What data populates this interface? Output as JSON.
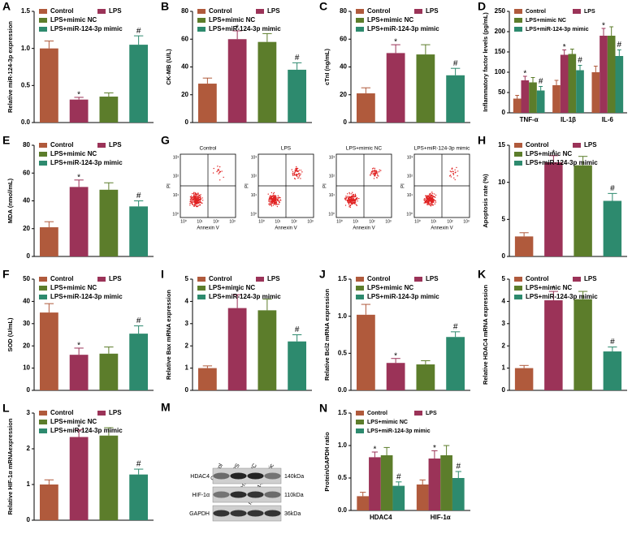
{
  "chart_data": [
    {
      "label": "A",
      "type": "bar",
      "ylabel": "Relative miR-124-3p expression",
      "ylim": [
        0,
        1.5
      ],
      "yticks": [
        {
          "value": 0,
          "label": "0.0"
        },
        0.5,
        {
          "value": 1,
          "label": "1.0"
        },
        1.5
      ],
      "series": [
        {
          "name": "Control",
          "color": "#b05a3c",
          "values": [
            1.0
          ],
          "errors": [
            0.1
          ]
        },
        {
          "name": "LPS",
          "color": "#9b3358",
          "values": [
            0.31
          ],
          "errors": [
            0.03
          ],
          "marks": [
            "*"
          ]
        },
        {
          "name": "LPS+mimic NC",
          "color": "#5c7d2b",
          "values": [
            0.35
          ],
          "errors": [
            0.05
          ]
        },
        {
          "name": "LPS+miR-124-3p mimic",
          "color": "#2d8a6e",
          "values": [
            1.05
          ],
          "errors": [
            0.12
          ],
          "marks": [
            "#"
          ]
        }
      ]
    },
    {
      "label": "B",
      "type": "bar",
      "ylabel": "CK-MB (U/L)",
      "ylim": [
        0,
        80
      ],
      "yticks": [
        0,
        20,
        40,
        60,
        80
      ],
      "series": [
        {
          "name": "Control",
          "color": "#b05a3c",
          "values": [
            28
          ],
          "errors": [
            4
          ]
        },
        {
          "name": "LPS",
          "color": "#9b3358",
          "values": [
            60
          ],
          "errors": [
            6
          ],
          "marks": [
            "*"
          ]
        },
        {
          "name": "LPS+mimic NC",
          "color": "#5c7d2b",
          "values": [
            58
          ],
          "errors": [
            6
          ]
        },
        {
          "name": "LPS+miR-124-3p mimic",
          "color": "#2d8a6e",
          "values": [
            38
          ],
          "errors": [
            5
          ],
          "marks": [
            "#"
          ]
        }
      ]
    },
    {
      "label": "C",
      "type": "bar",
      "ylabel": "cTnI (ng/mL)",
      "ylim": [
        0,
        80
      ],
      "yticks": [
        0,
        20,
        40,
        60,
        80
      ],
      "series": [
        {
          "name": "Control",
          "color": "#b05a3c",
          "values": [
            21
          ],
          "errors": [
            4
          ]
        },
        {
          "name": "LPS",
          "color": "#9b3358",
          "values": [
            50
          ],
          "errors": [
            6
          ],
          "marks": [
            "*"
          ]
        },
        {
          "name": "LPS+mimic NC",
          "color": "#5c7d2b",
          "values": [
            49
          ],
          "errors": [
            7
          ]
        },
        {
          "name": "LPS+miR-124-3p mimic",
          "color": "#2d8a6e",
          "values": [
            34
          ],
          "errors": [
            5
          ],
          "marks": [
            "#"
          ]
        }
      ]
    },
    {
      "label": "D",
      "type": "bar",
      "ylabel": "Inflammatory factor levels (pg/mL)",
      "ylim": [
        0,
        250
      ],
      "yticks": [
        0,
        50,
        100,
        150,
        200,
        250
      ],
      "categories": [
        "TNF-α",
        "IL-1β",
        "IL-6"
      ],
      "series": [
        {
          "name": "Control",
          "color": "#b05a3c",
          "values": [
            35,
            68,
            100
          ],
          "errors": [
            8,
            12,
            15
          ]
        },
        {
          "name": "LPS",
          "color": "#9b3358",
          "values": [
            80,
            143,
            190
          ],
          "errors": [
            10,
            12,
            18
          ],
          "marks": [
            "*",
            "*",
            "*"
          ]
        },
        {
          "name": "LPS+mimic NC",
          "color": "#5c7d2b",
          "values": [
            75,
            145,
            190
          ],
          "errors": [
            12,
            12,
            22
          ]
        },
        {
          "name": "LPS+miR-124-3p mimic",
          "color": "#2d8a6e",
          "values": [
            55,
            105,
            140
          ],
          "errors": [
            10,
            12,
            15
          ],
          "marks": [
            "#",
            "#",
            "#"
          ]
        }
      ]
    },
    {
      "label": "E",
      "type": "bar",
      "ylabel": "MDA (nmol/mL)",
      "ylim": [
        0,
        80
      ],
      "yticks": [
        0,
        20,
        40,
        60,
        80
      ],
      "series": [
        {
          "name": "Control",
          "color": "#b05a3c",
          "values": [
            21
          ],
          "errors": [
            4
          ]
        },
        {
          "name": "LPS",
          "color": "#9b3358",
          "values": [
            50
          ],
          "errors": [
            5
          ],
          "marks": [
            "*"
          ]
        },
        {
          "name": "LPS+mimic NC",
          "color": "#5c7d2b",
          "values": [
            48
          ],
          "errors": [
            5
          ]
        },
        {
          "name": "LPS+miR-124-3p mimic",
          "color": "#2d8a6e",
          "values": [
            36
          ],
          "errors": [
            4
          ],
          "marks": [
            "#"
          ]
        }
      ]
    },
    {
      "label": "H",
      "type": "bar",
      "ylabel": "Apoptosis rate (%)",
      "ylim": [
        0,
        15
      ],
      "yticks": [
        0,
        5,
        10,
        15
      ],
      "series": [
        {
          "name": "Control",
          "color": "#b05a3c",
          "values": [
            2.7
          ],
          "errors": [
            0.5
          ]
        },
        {
          "name": "LPS",
          "color": "#9b3358",
          "values": [
            12.7
          ],
          "errors": [
            0.9
          ],
          "marks": [
            "*"
          ]
        },
        {
          "name": "LPS+mimic NC",
          "color": "#5c7d2b",
          "values": [
            12.3
          ],
          "errors": [
            1.2
          ]
        },
        {
          "name": "LPS+miR-124-3p mimic",
          "color": "#2d8a6e",
          "values": [
            7.5
          ],
          "errors": [
            1.0
          ],
          "marks": [
            "#"
          ]
        }
      ]
    },
    {
      "label": "F",
      "type": "bar",
      "ylabel": "SOD (U/mL)",
      "ylim": [
        0,
        50
      ],
      "yticks": [
        0,
        10,
        20,
        30,
        40,
        50
      ],
      "series": [
        {
          "name": "Control",
          "color": "#b05a3c",
          "values": [
            35
          ],
          "errors": [
            4
          ]
        },
        {
          "name": "LPS",
          "color": "#9b3358",
          "values": [
            16
          ],
          "errors": [
            3
          ],
          "marks": [
            "*"
          ]
        },
        {
          "name": "LPS+mimic NC",
          "color": "#5c7d2b",
          "values": [
            16.5
          ],
          "errors": [
            3
          ]
        },
        {
          "name": "LPS+miR-124-3p mimic",
          "color": "#2d8a6e",
          "values": [
            25.5
          ],
          "errors": [
            3.5
          ],
          "marks": [
            "#"
          ]
        }
      ]
    },
    {
      "label": "I",
      "type": "bar",
      "ylabel": "Relative Bax mRNA expression",
      "ylim": [
        0,
        5
      ],
      "yticks": [
        0,
        1,
        2,
        3,
        4,
        5
      ],
      "series": [
        {
          "name": "Control",
          "color": "#b05a3c",
          "values": [
            1.0
          ],
          "errors": [
            0.1
          ]
        },
        {
          "name": "LPS",
          "color": "#9b3358",
          "values": [
            3.7
          ],
          "errors": [
            0.6
          ],
          "marks": [
            "*"
          ]
        },
        {
          "name": "LPS+mimic NC",
          "color": "#5c7d2b",
          "values": [
            3.6
          ],
          "errors": [
            0.5
          ]
        },
        {
          "name": "LPS+miR-124-3p mimic",
          "color": "#2d8a6e",
          "values": [
            2.2
          ],
          "errors": [
            0.3
          ],
          "marks": [
            "#"
          ]
        }
      ]
    },
    {
      "label": "J",
      "type": "bar",
      "ylabel": "Relative Bcl2 mRNA expression",
      "ylim": [
        0,
        1.5
      ],
      "yticks": [
        {
          "value": 0,
          "label": "0.0"
        },
        0.5,
        {
          "value": 1,
          "label": "1.0"
        },
        1.5
      ],
      "series": [
        {
          "name": "Control",
          "color": "#b05a3c",
          "values": [
            1.02
          ],
          "errors": [
            0.14
          ]
        },
        {
          "name": "LPS",
          "color": "#9b3358",
          "values": [
            0.37
          ],
          "errors": [
            0.06
          ],
          "marks": [
            "*"
          ]
        },
        {
          "name": "LPS+mimic NC",
          "color": "#5c7d2b",
          "values": [
            0.35
          ],
          "errors": [
            0.05
          ]
        },
        {
          "name": "LPS+miR-124-3p mimic",
          "color": "#2d8a6e",
          "values": [
            0.72
          ],
          "errors": [
            0.07
          ],
          "marks": [
            "#"
          ]
        }
      ]
    },
    {
      "label": "K",
      "type": "bar",
      "ylabel": "Relative HDAC4 mRNA expression",
      "ylim": [
        0,
        5
      ],
      "yticks": [
        0,
        1,
        2,
        3,
        4,
        5
      ],
      "series": [
        {
          "name": "Control",
          "color": "#b05a3c",
          "values": [
            1.0
          ],
          "errors": [
            0.12
          ]
        },
        {
          "name": "LPS",
          "color": "#9b3358",
          "values": [
            4.05
          ],
          "errors": [
            0.4
          ],
          "marks": [
            "*"
          ]
        },
        {
          "name": "LPS+mimic NC",
          "color": "#5c7d2b",
          "values": [
            4.1
          ],
          "errors": [
            0.35
          ]
        },
        {
          "name": "LPS+miR-124-3p mimic",
          "color": "#2d8a6e",
          "values": [
            1.75
          ],
          "errors": [
            0.2
          ],
          "marks": [
            "#"
          ]
        }
      ]
    },
    {
      "label": "L",
      "type": "bar",
      "ylabel": "Relative HIF-1α mRNAexpression",
      "ylim": [
        0,
        3
      ],
      "yticks": [
        0,
        1,
        2,
        3
      ],
      "series": [
        {
          "name": "Control",
          "color": "#b05a3c",
          "values": [
            1.0
          ],
          "errors": [
            0.13
          ]
        },
        {
          "name": "LPS",
          "color": "#9b3358",
          "values": [
            2.33
          ],
          "errors": [
            0.2
          ],
          "marks": [
            "*"
          ]
        },
        {
          "name": "LPS+mimic NC",
          "color": "#5c7d2b",
          "values": [
            2.37
          ],
          "errors": [
            0.22
          ]
        },
        {
          "name": "LPS+miR-124-3p mimic",
          "color": "#2d8a6e",
          "values": [
            1.28
          ],
          "errors": [
            0.15
          ],
          "marks": [
            "#"
          ]
        }
      ]
    },
    {
      "label": "N",
      "type": "bar",
      "ylabel": "Protein/GAPDH ratio",
      "ylim": [
        0,
        1.5
      ],
      "yticks": [
        {
          "value": 0,
          "label": "0.0"
        },
        0.5,
        {
          "value": 1,
          "label": "1.0"
        },
        1.5
      ],
      "categories": [
        "HDAC4",
        "HIF-1α"
      ],
      "series": [
        {
          "name": "Control",
          "color": "#b05a3c",
          "values": [
            0.22,
            0.4
          ],
          "errors": [
            0.06,
            0.07
          ]
        },
        {
          "name": "LPS",
          "color": "#9b3358",
          "values": [
            0.82,
            0.8
          ],
          "errors": [
            0.08,
            0.12
          ],
          "marks": [
            "*",
            "*"
          ]
        },
        {
          "name": "LPS+mimic NC",
          "color": "#5c7d2b",
          "values": [
            0.85,
            0.85
          ],
          "errors": [
            0.12,
            0.15
          ]
        },
        {
          "name": "LPS+miR-124-3p mimic",
          "color": "#2d8a6e",
          "values": [
            0.38,
            0.5
          ],
          "errors": [
            0.06,
            0.1
          ],
          "marks": [
            "#",
            "#"
          ]
        }
      ]
    }
  ],
  "flow_cytometry": {
    "label": "G",
    "panels": [
      "Control",
      "LPS",
      "LPS+mimic NC",
      "LPS+miR-124-3p mimic"
    ],
    "ylabel": "PI",
    "xlabel": "Annexin V",
    "ticks": [
      "10⁰",
      "10¹",
      "10²",
      "10³"
    ]
  },
  "western_blot": {
    "label": "M",
    "lanes": [
      "Control",
      "LPS",
      "LPS+mimic NC",
      "LPS+ miR-124-3p mimic"
    ],
    "proteins": [
      "HDAC4",
      "HIF-1α",
      "GAPDH"
    ],
    "sizes": [
      "140kDa",
      "110kDa",
      "36kDa"
    ]
  }
}
